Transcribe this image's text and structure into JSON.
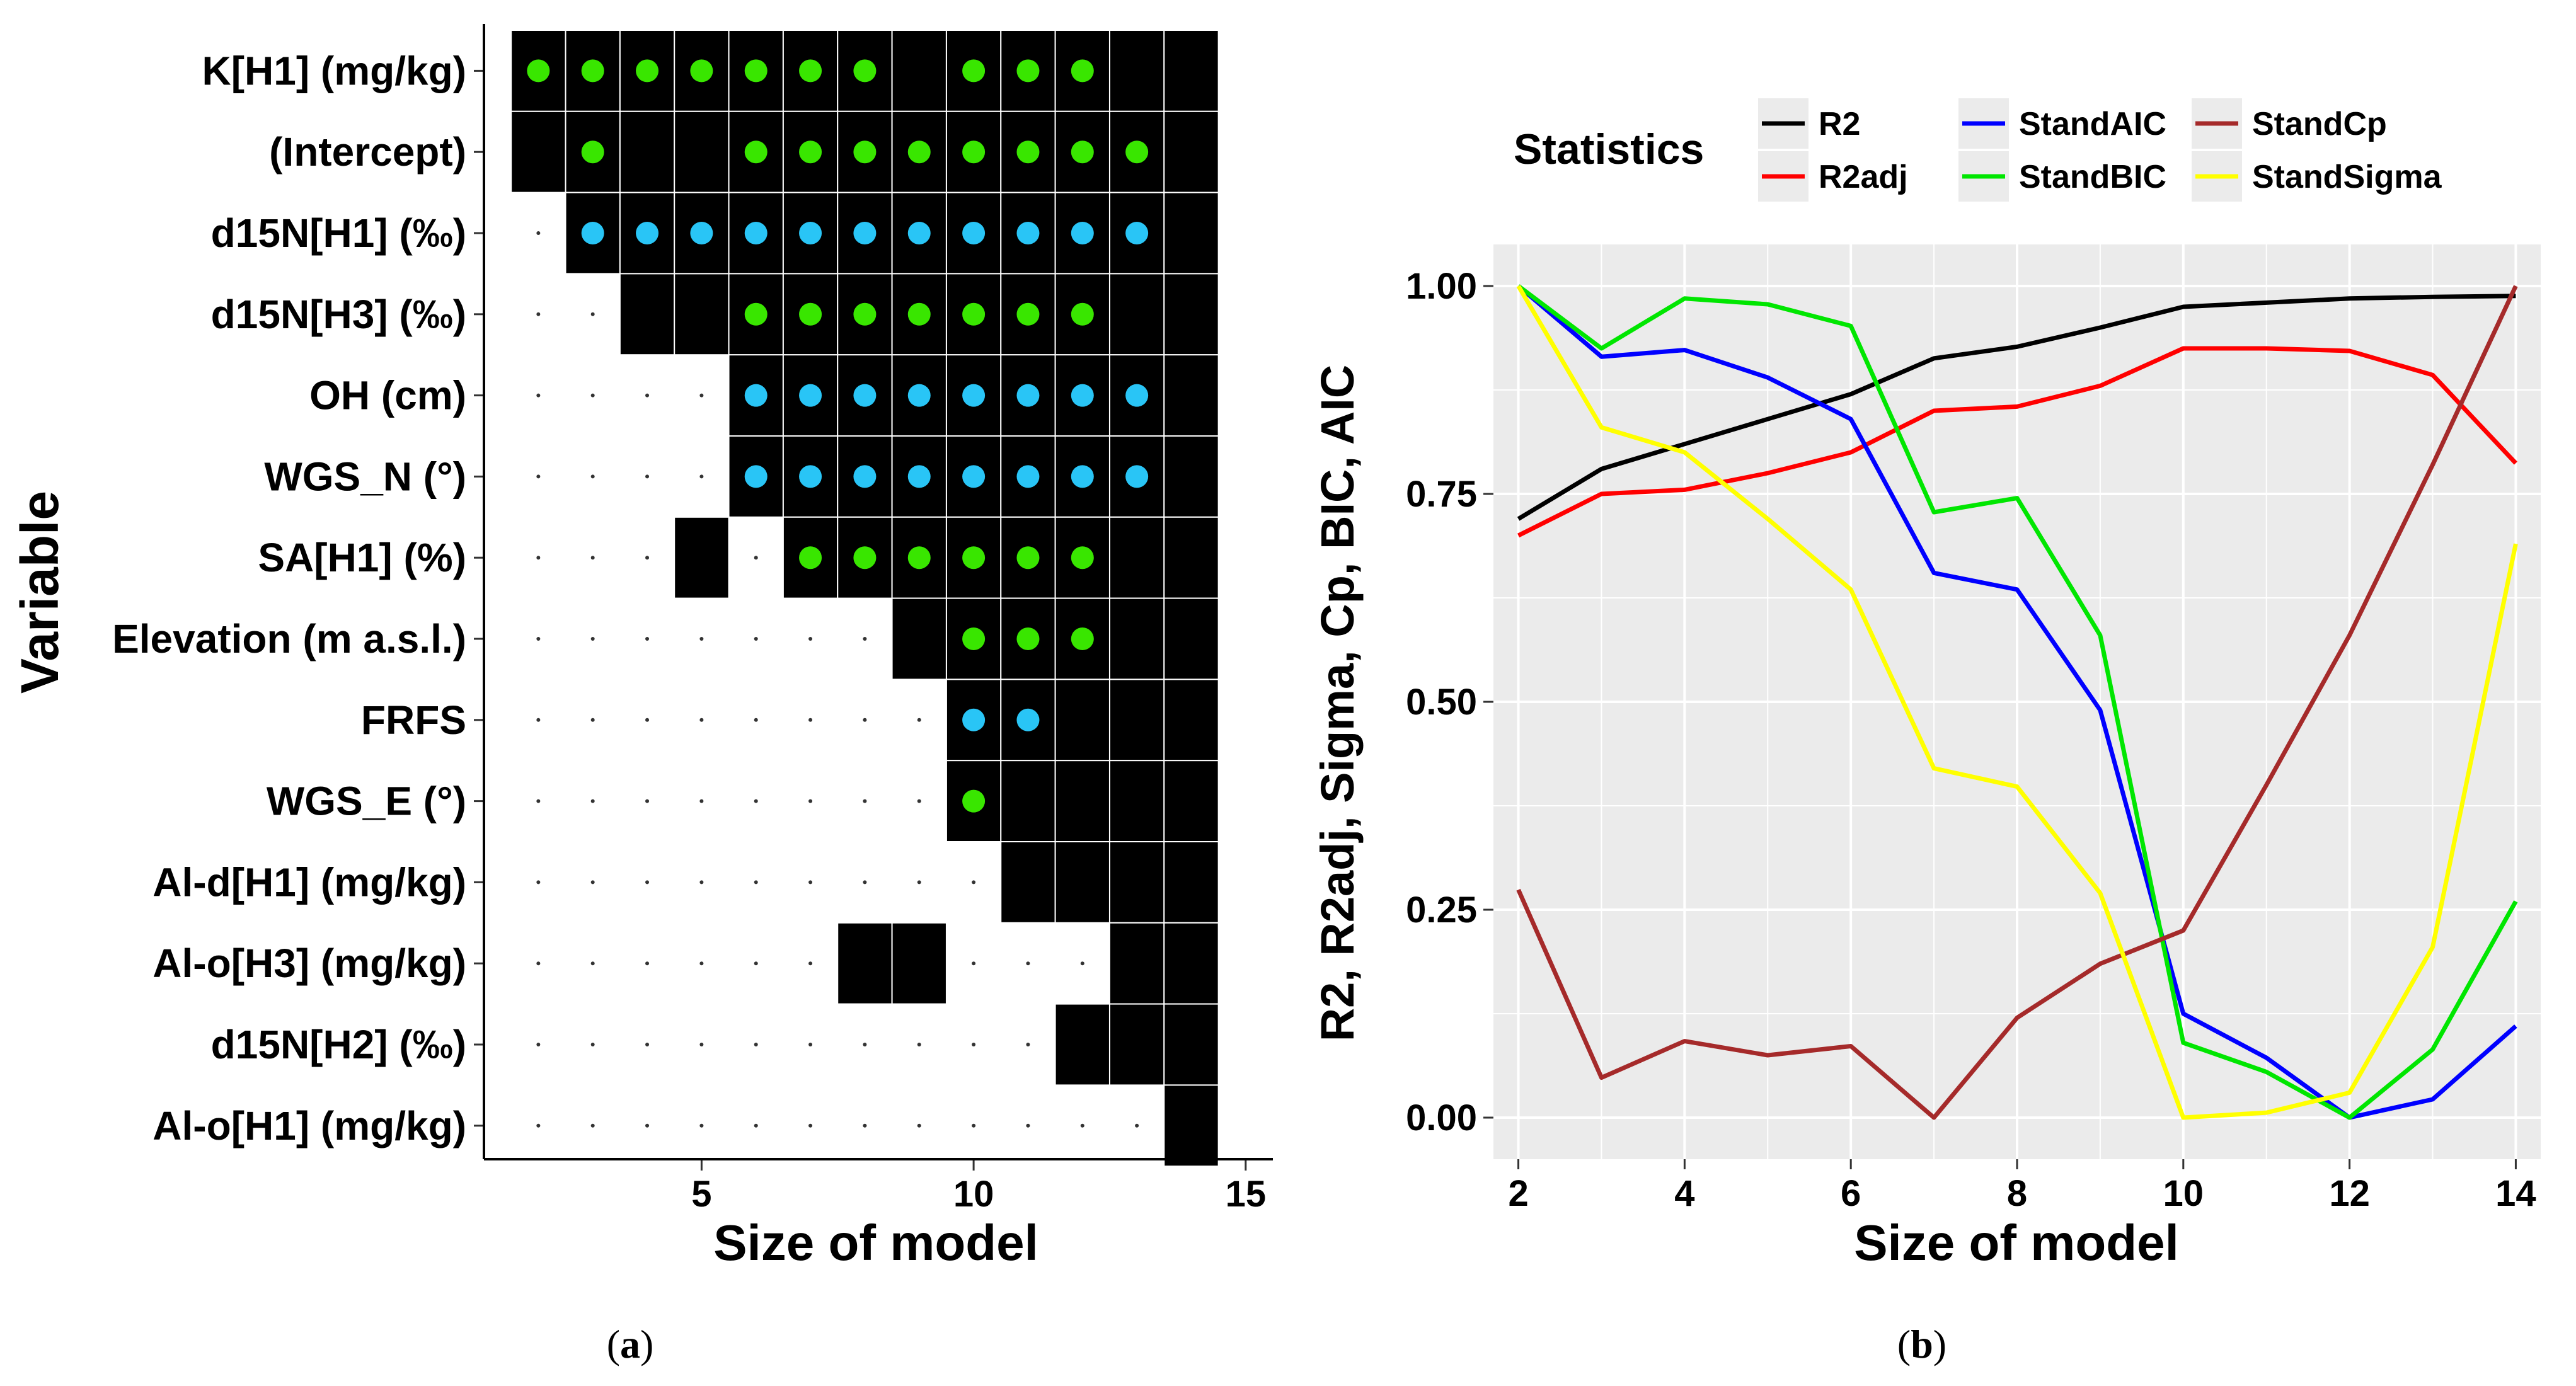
{
  "panel_a": {
    "caption": "(a)",
    "caption_letter": "a"
  },
  "panel_b": {
    "caption": "(b)",
    "caption_letter": "b"
  },
  "chart_data": [
    {
      "type": "heatmap",
      "panel": "a",
      "title": "",
      "xlabel": "Size of model",
      "ylabel": "Variable",
      "xlim": [
        1,
        15.5
      ],
      "xticks": [
        5,
        10,
        15
      ],
      "sizes": [
        2,
        3,
        4,
        5,
        6,
        7,
        8,
        9,
        10,
        11,
        12,
        13,
        14
      ],
      "variables": [
        "K[H1] (mg/kg)",
        "(Intercept)",
        "d15N[H1] (‰)",
        "d15N[H3] (‰)",
        "OH (cm)",
        "WGS_N (°)",
        "SA[H1] (%)",
        "Elevation (m a.s.l.)",
        "FRFS",
        "WGS_E (°)",
        "Al-d[H1] (mg/kg)",
        "Al-o[H3] (mg/kg)",
        "d15N[H2] (‰)",
        "Al-o[H1] (mg/kg)"
      ],
      "included": [
        [
          2,
          3,
          4,
          5,
          6,
          7,
          8,
          9,
          10,
          11,
          12,
          13,
          14
        ],
        [
          2,
          3,
          4,
          5,
          6,
          7,
          8,
          9,
          10,
          11,
          12,
          13,
          14
        ],
        [
          3,
          4,
          5,
          6,
          7,
          8,
          9,
          10,
          11,
          12,
          13,
          14
        ],
        [
          4,
          5,
          6,
          7,
          8,
          9,
          10,
          11,
          12,
          13,
          14
        ],
        [
          6,
          7,
          8,
          9,
          10,
          11,
          12,
          13,
          14
        ],
        [
          6,
          7,
          8,
          9,
          10,
          11,
          12,
          13,
          14
        ],
        [
          5,
          7,
          8,
          9,
          10,
          11,
          12,
          13,
          14
        ],
        [
          9,
          10,
          11,
          12,
          13,
          14
        ],
        [
          10,
          11,
          12,
          13,
          14
        ],
        [
          10,
          11,
          12,
          13,
          14
        ],
        [
          11,
          12,
          13,
          14
        ],
        [
          8,
          9,
          13,
          14
        ],
        [
          12,
          13,
          14
        ],
        [
          14
        ]
      ],
      "markers": [
        {
          "color": "green",
          "sizes": [
            2,
            3,
            4,
            5,
            6,
            7,
            8,
            10,
            11,
            12
          ]
        },
        {
          "color": "green",
          "sizes": [
            3,
            6,
            7,
            8,
            9,
            10,
            11,
            12,
            13
          ]
        },
        {
          "color": "blue",
          "sizes": [
            3,
            4,
            5,
            6,
            7,
            8,
            9,
            10,
            11,
            12,
            13
          ]
        },
        {
          "color": "green",
          "sizes": [
            6,
            7,
            8,
            9,
            10,
            11,
            12
          ]
        },
        {
          "color": "blue",
          "sizes": [
            6,
            7,
            8,
            9,
            10,
            11,
            12,
            13
          ]
        },
        {
          "color": "blue",
          "sizes": [
            6,
            7,
            8,
            9,
            10,
            11,
            12,
            13
          ]
        },
        {
          "color": "green",
          "sizes": [
            7,
            8,
            9,
            10,
            11,
            12
          ]
        },
        {
          "color": "green",
          "sizes": [
            10,
            11,
            12
          ]
        },
        {
          "color": "blue",
          "sizes": [
            10,
            11
          ]
        },
        {
          "color": "green",
          "sizes": [
            10
          ]
        },
        {
          "color": "green",
          "sizes": []
        },
        {
          "color": "green",
          "sizes": []
        },
        {
          "color": "green",
          "sizes": []
        },
        {
          "color": "green",
          "sizes": []
        }
      ],
      "colors": {
        "included": "#000000",
        "excluded": "#ffffff",
        "green": "#39e600",
        "blue": "#29c5f6"
      }
    },
    {
      "type": "line",
      "panel": "b",
      "title": "",
      "xlabel": "Size of model",
      "ylabel": "R2, R2adj, Sigma, Cp, BIC, AIC",
      "xlim": [
        1.7,
        14.3
      ],
      "ylim": [
        -0.05,
        1.05
      ],
      "xticks": [
        "2",
        "4",
        "6",
        "8",
        "10",
        "12",
        "14"
      ],
      "yticks": [
        "0.00",
        "0.25",
        "0.50",
        "0.75",
        "1.00"
      ],
      "legend_title": "Statistics",
      "legend_position": "top",
      "grid": true,
      "x": [
        2,
        3,
        4,
        5,
        6,
        7,
        8,
        9,
        10,
        11,
        12,
        13,
        14
      ],
      "series": [
        {
          "name": "R2",
          "color": "#000000",
          "values": [
            0.72,
            0.78,
            0.81,
            0.84,
            0.87,
            0.913,
            0.927,
            0.95,
            0.975,
            0.98,
            0.985,
            0.987,
            0.988
          ]
        },
        {
          "name": "R2adj",
          "color": "#ff0000",
          "values": [
            0.7,
            0.75,
            0.755,
            0.775,
            0.8,
            0.85,
            0.855,
            0.88,
            0.925,
            0.925,
            0.922,
            0.893,
            0.787
          ]
        },
        {
          "name": "StandAIC",
          "color": "#0000ff",
          "values": [
            1.0,
            0.915,
            0.923,
            0.89,
            0.84,
            0.655,
            0.635,
            0.49,
            0.125,
            0.072,
            0.0,
            0.022,
            0.11
          ]
        },
        {
          "name": "StandBIC",
          "color": "#00e600",
          "values": [
            1.0,
            0.925,
            0.985,
            0.978,
            0.952,
            0.728,
            0.745,
            0.58,
            0.09,
            0.055,
            0.0,
            0.082,
            0.26
          ]
        },
        {
          "name": "StandCp",
          "color": "#a52a2a",
          "values": [
            0.274,
            0.048,
            0.092,
            0.075,
            0.086,
            0.0,
            0.12,
            0.185,
            0.225,
            0.4,
            0.58,
            0.785,
            1.0
          ]
        },
        {
          "name": "StandSigma",
          "color": "#ffff00",
          "values": [
            1.0,
            0.83,
            0.8,
            0.72,
            0.635,
            0.42,
            0.398,
            0.27,
            0.0,
            0.006,
            0.03,
            0.205,
            0.69
          ]
        }
      ],
      "colors": {
        "panel_bg": "#ebebeb",
        "grid": "#ffffff"
      }
    }
  ]
}
